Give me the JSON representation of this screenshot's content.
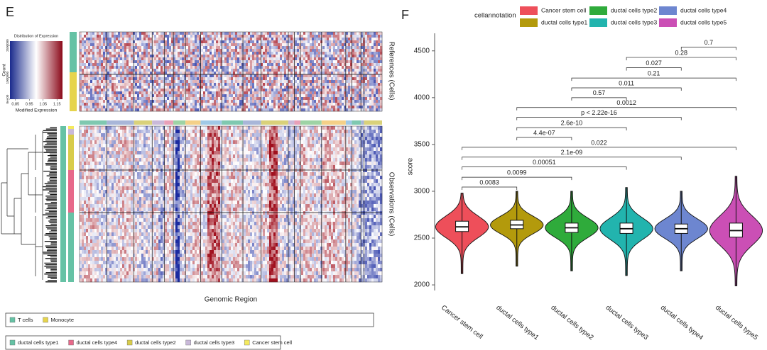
{
  "chart_data": [
    {
      "type": "heatmap",
      "panel_label": "E",
      "color_key": {
        "title": "Distribution of Expression",
        "xlabel": "Modified Expression",
        "ylabel": "Count",
        "xlim": [
          0.81,
          1.19
        ],
        "xticks": [
          0.85,
          0.95,
          1.05,
          1.15
        ],
        "ylim": [
          0,
          2700000
        ],
        "yticks": [
          {
            "value": 0,
            "label": "0e+00"
          },
          1000000,
          2500000
        ]
      },
      "references_label": "References (Cells)",
      "observations_label": "Observations (Cells)",
      "xlabel": "Genomic Region",
      "legends": [
        {
          "items": [
            {
              "name": "T cells",
              "color": "#66c2a5"
            },
            {
              "name": "Monocyte",
              "color": "#e6d44c"
            }
          ]
        },
        {
          "items": [
            {
              "name": "ductal cells type1",
              "color": "#66c2a5"
            },
            {
              "name": "ductal cells type4",
              "color": "#e7698a"
            },
            {
              "name": "ductal cells type2",
              "color": "#d8cc4a"
            },
            {
              "name": "ductal cells type3",
              "color": "#c9b9d9"
            },
            {
              "name": "Cancer stem cell",
              "color": "#f4ea5e"
            }
          ]
        }
      ]
    },
    {
      "type": "violin",
      "panel_label": "F",
      "legend_title": "cellannotation",
      "ylabel": "score",
      "ylim": [
        1940,
        4650
      ],
      "yticks": [
        2000,
        2500,
        3000,
        3500,
        4000,
        4500
      ],
      "series": [
        {
          "name": "Cancer stem cell",
          "color": "#ee4f5a",
          "min": 2120,
          "q1": 2570,
          "median": 2620,
          "q3": 2680,
          "max": 2980
        },
        {
          "name": "ductal cells type1",
          "color": "#b39a0c",
          "min": 2200,
          "q1": 2600,
          "median": 2640,
          "q3": 2690,
          "max": 3000
        },
        {
          "name": "ductal cells type2",
          "color": "#2fab3b",
          "min": 2150,
          "q1": 2560,
          "median": 2610,
          "q3": 2660,
          "max": 3000
        },
        {
          "name": "ductal cells type3",
          "color": "#22b4ae",
          "min": 2100,
          "q1": 2550,
          "median": 2600,
          "q3": 2660,
          "max": 3040
        },
        {
          "name": "ductal cells type4",
          "color": "#6d86d0",
          "min": 2150,
          "q1": 2550,
          "median": 2600,
          "q3": 2650,
          "max": 3000
        },
        {
          "name": "ductal cells type5",
          "color": "#cb4fb5",
          "min": 1990,
          "q1": 2510,
          "median": 2580,
          "q3": 2660,
          "max": 3160
        }
      ],
      "comparisons": [
        {
          "start": "ductal cells type4",
          "end": "ductal cells type5",
          "y": 4540,
          "label": "0.7"
        },
        {
          "start": "ductal cells type3",
          "end": "ductal cells type5",
          "y": 4430,
          "label": "0.28"
        },
        {
          "start": "ductal cells type3",
          "end": "ductal cells type4",
          "y": 4320,
          "label": "0.027"
        },
        {
          "start": "ductal cells type2",
          "end": "ductal cells type5",
          "y": 4210,
          "label": "0.21"
        },
        {
          "start": "ductal cells type2",
          "end": "ductal cells type4",
          "y": 4105,
          "label": "0.011"
        },
        {
          "start": "ductal cells type2",
          "end": "ductal cells type3",
          "y": 4000,
          "label": "0.57"
        },
        {
          "start": "ductal cells type1",
          "end": "ductal cells type5",
          "y": 3895,
          "label": "0.0012"
        },
        {
          "start": "ductal cells type1",
          "end": "ductal cells type4",
          "y": 3790,
          "label": "p < 2.22e-16"
        },
        {
          "start": "ductal cells type1",
          "end": "ductal cells type3",
          "y": 3680,
          "label": "2.6e-10"
        },
        {
          "start": "ductal cells type1",
          "end": "ductal cells type2",
          "y": 3575,
          "label": "4.4e-07"
        },
        {
          "start": "Cancer stem cell",
          "end": "ductal cells type5",
          "y": 3470,
          "label": "0.022"
        },
        {
          "start": "Cancer stem cell",
          "end": "ductal cells type4",
          "y": 3365,
          "label": "2.1e-09"
        },
        {
          "start": "Cancer stem cell",
          "end": "ductal cells type3",
          "y": 3260,
          "label": "0.00051"
        },
        {
          "start": "Cancer stem cell",
          "end": "ductal cells type2",
          "y": 3150,
          "label": "0.0099"
        },
        {
          "start": "Cancer stem cell",
          "end": "ductal cells type1",
          "y": 3045,
          "label": "0.0083"
        }
      ]
    }
  ]
}
